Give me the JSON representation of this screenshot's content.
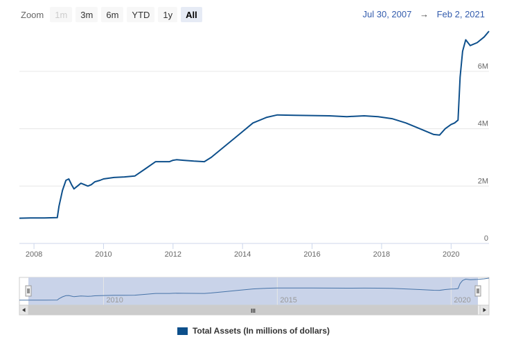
{
  "zoom": {
    "label": "Zoom",
    "buttons": [
      {
        "label": "1m",
        "state": "disabled"
      },
      {
        "label": "3m",
        "state": "normal"
      },
      {
        "label": "6m",
        "state": "normal"
      },
      {
        "label": "YTD",
        "state": "normal"
      },
      {
        "label": "1y",
        "state": "normal"
      },
      {
        "label": "All",
        "state": "active"
      }
    ]
  },
  "range": {
    "from": "Jul 30, 2007",
    "arrow": "→",
    "to": "Feb 2, 2021"
  },
  "navigator": {
    "scrollbar_grip": "III",
    "x_ticks": [
      "2010",
      "2015",
      "2020"
    ]
  },
  "legend": {
    "label": "Total Assets (In millions of dollars)",
    "color": "#0d4f8b"
  },
  "chart_data": {
    "type": "line",
    "title": "",
    "xlabel": "",
    "ylabel": "",
    "x_range": [
      2007.58,
      2021.09
    ],
    "y_range": [
      0,
      7400000
    ],
    "x_ticks": [
      "2008",
      "2010",
      "2012",
      "2014",
      "2016",
      "2018",
      "2020"
    ],
    "y_ticks": [
      {
        "value": 0,
        "label": "0"
      },
      {
        "value": 2000000,
        "label": "2M"
      },
      {
        "value": 4000000,
        "label": "4M"
      },
      {
        "value": 6000000,
        "label": "6M"
      }
    ],
    "grid": true,
    "series": [
      {
        "name": "Total Assets (In millions of dollars)",
        "color": "#0d4f8b",
        "x": [
          2007.58,
          2007.9,
          2008.3,
          2008.67,
          2008.72,
          2008.82,
          2008.92,
          2009.0,
          2009.08,
          2009.15,
          2009.25,
          2009.35,
          2009.45,
          2009.55,
          2009.65,
          2009.75,
          2009.9,
          2010.0,
          2010.3,
          2010.6,
          2010.9,
          2011.2,
          2011.5,
          2011.9,
          2012.0,
          2012.1,
          2012.3,
          2012.6,
          2012.9,
          2013.1,
          2013.5,
          2013.9,
          2014.3,
          2014.7,
          2015.0,
          2015.5,
          2016.0,
          2016.5,
          2017.0,
          2017.5,
          2017.9,
          2018.3,
          2018.7,
          2019.1,
          2019.5,
          2019.67,
          2019.83,
          2020.0,
          2020.1,
          2020.2,
          2020.26,
          2020.33,
          2020.42,
          2020.55,
          2020.75,
          2020.95,
          2021.09
        ],
        "y": [
          880000,
          890000,
          890000,
          900000,
          1300000,
          1850000,
          2200000,
          2250000,
          2050000,
          1900000,
          2000000,
          2100000,
          2050000,
          2000000,
          2050000,
          2150000,
          2200000,
          2250000,
          2300000,
          2320000,
          2350000,
          2600000,
          2850000,
          2850000,
          2900000,
          2920000,
          2900000,
          2870000,
          2850000,
          3000000,
          3400000,
          3800000,
          4200000,
          4400000,
          4480000,
          4470000,
          4460000,
          4450000,
          4420000,
          4450000,
          4420000,
          4350000,
          4200000,
          4000000,
          3800000,
          3780000,
          4000000,
          4150000,
          4200000,
          4300000,
          5800000,
          6700000,
          7100000,
          6900000,
          7000000,
          7200000,
          7400000
        ]
      }
    ]
  }
}
